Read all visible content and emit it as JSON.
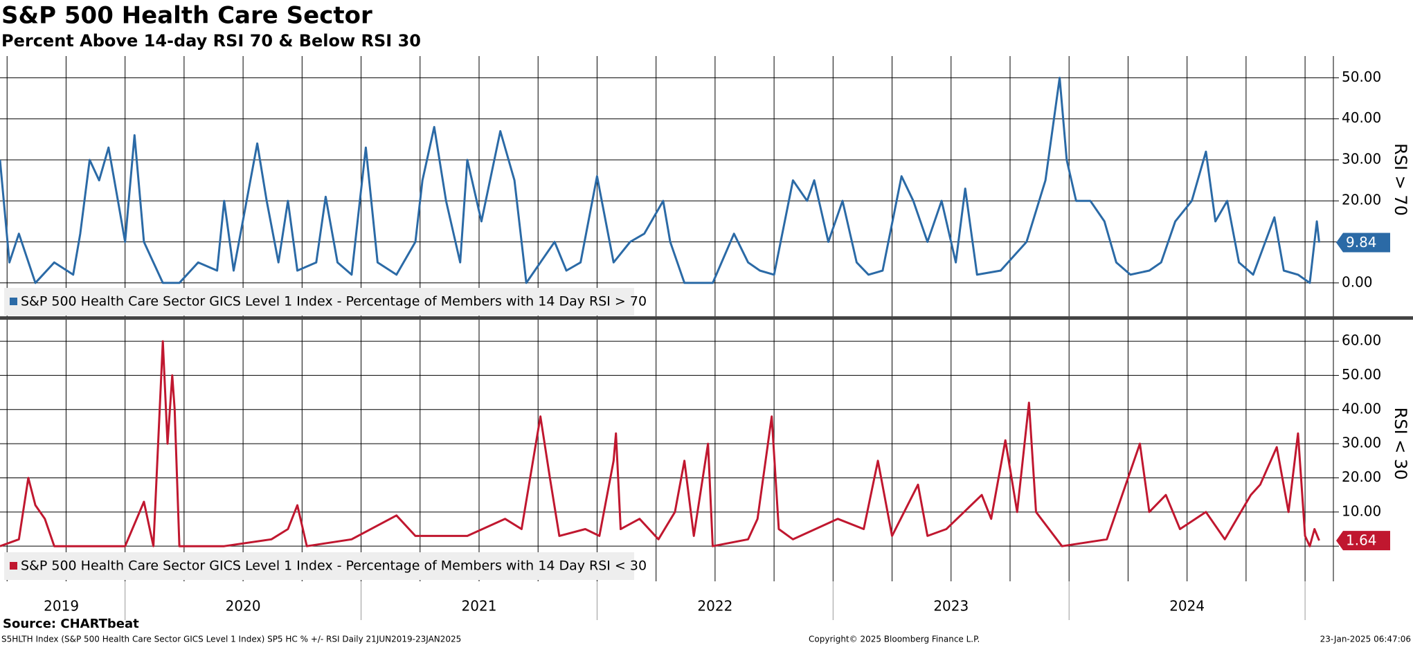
{
  "title": "S&P 500 Health Care Sector",
  "subtitle": "Percent Above 14-day RSI 70 & Below RSI 30",
  "notes": {
    "source": "Source: CHARTbeat",
    "footer": "S5HLTH Index (S&P 500 Health Care Sector GICS Level 1 Index) SP5 HC % +/- RSI  Daily 21JUN2019-23JAN2025",
    "copyright": "Copyright© 2025 Bloomberg Finance L.P.",
    "timestamp": "23-Jan-2025 06:47:06"
  },
  "chart_data": [
    {
      "type": "line",
      "y_label": "RSI > 70",
      "ylim": [
        -8.3,
        55.3
      ],
      "yticks": [
        {
          "value": 0,
          "label": "0.00"
        },
        {
          "value": 10,
          "label": "10.00"
        },
        {
          "value": 20,
          "label": "20.00"
        },
        {
          "value": 30,
          "label": "30.00"
        },
        {
          "value": 40,
          "label": "40.00"
        },
        {
          "value": 50,
          "label": "50.00"
        }
      ],
      "xlim": [
        2019.47,
        2025.12
      ],
      "grid": true,
      "series": [
        {
          "name": "S&P 500 Health Care Sector GICS Level 1 Index - Percentage of Members with 14 Day RSI > 70",
          "color": "#2b6aa6",
          "x": [
            2019.47,
            2019.51,
            2019.55,
            2019.62,
            2019.7,
            2019.78,
            2019.81,
            2019.85,
            2019.89,
            2019.93,
            2019.97,
            2020.0,
            2020.04,
            2020.08,
            2020.12,
            2020.16,
            2020.23,
            2020.31,
            2020.39,
            2020.42,
            2020.46,
            2020.56,
            2020.6,
            2020.65,
            2020.69,
            2020.73,
            2020.81,
            2020.85,
            2020.9,
            2020.96,
            2021.02,
            2021.07,
            2021.15,
            2021.23,
            2021.26,
            2021.31,
            2021.36,
            2021.42,
            2021.45,
            2021.51,
            2021.59,
            2021.65,
            2021.68,
            2021.7,
            2021.76,
            2021.82,
            2021.87,
            2021.93,
            2022.0,
            2022.07,
            2022.14,
            2022.2,
            2022.28,
            2022.31,
            2022.37,
            2022.43,
            2022.49,
            2022.58,
            2022.64,
            2022.69,
            2022.75,
            2022.83,
            2022.89,
            2022.92,
            2022.98,
            2023.04,
            2023.1,
            2023.15,
            2023.21,
            2023.29,
            2023.34,
            2023.4,
            2023.46,
            2023.52,
            2023.56,
            2023.61,
            2023.71,
            2023.82,
            2023.9,
            2023.96,
            2023.99,
            2024.03,
            2024.09,
            2024.15,
            2024.2,
            2024.26,
            2024.34,
            2024.39,
            2024.45,
            2024.52,
            2024.58,
            2024.62,
            2024.67,
            2024.72,
            2024.78,
            2024.87,
            2024.91,
            2024.97,
            2025.02,
            2025.05,
            2025.06
          ],
          "values": [
            30,
            5,
            12,
            0,
            5,
            2,
            12,
            30,
            25,
            33,
            20,
            10,
            36,
            10,
            5,
            0,
            0,
            5,
            3,
            20,
            3,
            34,
            20,
            5,
            20,
            3,
            5,
            21,
            5,
            2,
            33,
            5,
            2,
            10,
            25,
            38,
            20,
            5,
            30,
            15,
            37,
            25,
            10,
            0,
            5,
            10,
            3,
            5,
            26,
            5,
            10,
            12,
            20,
            10,
            0,
            0,
            0,
            12,
            5,
            3,
            2,
            25,
            20,
            25,
            10,
            20,
            5,
            2,
            3,
            26,
            20,
            10,
            20,
            5,
            23,
            2,
            3,
            10,
            25,
            50,
            30,
            20,
            20,
            15,
            5,
            2,
            3,
            5,
            15,
            20,
            32,
            15,
            20,
            5,
            2,
            16,
            3,
            2,
            0,
            15,
            9.84
          ]
        }
      ]
    },
    {
      "type": "line",
      "y_label": "RSI < 30",
      "ylim": [
        -10.3,
        66.3
      ],
      "yticks": [
        {
          "value": 0,
          "label": "0.00"
        },
        {
          "value": 10,
          "label": "10.00"
        },
        {
          "value": 20,
          "label": "20.00"
        },
        {
          "value": 30,
          "label": "30.00"
        },
        {
          "value": 40,
          "label": "40.00"
        },
        {
          "value": 50,
          "label": "50.00"
        },
        {
          "value": 60,
          "label": "60.00"
        }
      ],
      "xlim": [
        2019.47,
        2025.12
      ],
      "grid": true,
      "xgrid": [
        2019.5,
        2019.75,
        2020,
        2020.25,
        2020.5,
        2020.75,
        2021,
        2021.25,
        2021.5,
        2021.75,
        2022,
        2022.25,
        2022.5,
        2022.75,
        2023,
        2023.25,
        2023.5,
        2023.75,
        2024,
        2024.25,
        2024.5,
        2024.75,
        2025
      ],
      "xticks": [
        {
          "value": 2019.73,
          "label": "2019"
        },
        {
          "value": 2020.5,
          "label": "2020"
        },
        {
          "value": 2021.5,
          "label": "2021"
        },
        {
          "value": 2022.5,
          "label": "2022"
        },
        {
          "value": 2023.5,
          "label": "2023"
        },
        {
          "value": 2024.5,
          "label": "2024"
        }
      ],
      "series": [
        {
          "name": "S&P 500 Health Care Sector GICS Level 1 Index - Percentage of Members with 14 Day RSI < 30",
          "color": "#c0172f",
          "x": [
            2019.47,
            2019.55,
            2019.59,
            2019.62,
            2019.66,
            2019.7,
            2019.85,
            2020.0,
            2020.08,
            2020.12,
            2020.16,
            2020.18,
            2020.2,
            2020.21,
            2020.23,
            2020.42,
            2020.62,
            2020.69,
            2020.73,
            2020.77,
            2020.96,
            2021.15,
            2021.23,
            2021.45,
            2021.61,
            2021.68,
            2021.76,
            2021.8,
            2021.84,
            2021.95,
            2022.01,
            2022.07,
            2022.08,
            2022.1,
            2022.18,
            2022.26,
            2022.33,
            2022.37,
            2022.41,
            2022.47,
            2022.49,
            2022.64,
            2022.68,
            2022.74,
            2022.77,
            2022.83,
            2023.02,
            2023.13,
            2023.19,
            2023.25,
            2023.36,
            2023.4,
            2023.48,
            2023.63,
            2023.67,
            2023.73,
            2023.78,
            2023.83,
            2023.86,
            2023.97,
            2024.16,
            2024.3,
            2024.34,
            2024.41,
            2024.47,
            2024.58,
            2024.66,
            2024.77,
            2024.81,
            2024.88,
            2024.93,
            2024.97,
            2025.0,
            2025.02,
            2025.04,
            2025.06
          ],
          "values": [
            0,
            2,
            20,
            12,
            8,
            0,
            0,
            0,
            13,
            0,
            60,
            30,
            50,
            40,
            0,
            0,
            2,
            5,
            12,
            0,
            2,
            9,
            3,
            3,
            8,
            5,
            38,
            20,
            3,
            5,
            3,
            25,
            33,
            5,
            8,
            2,
            10,
            25,
            3,
            30,
            0,
            2,
            8,
            38,
            5,
            2,
            8,
            5,
            25,
            3,
            18,
            3,
            5,
            15,
            8,
            31,
            10,
            42,
            10,
            0,
            2,
            30,
            10,
            15,
            5,
            10,
            2,
            15,
            18,
            29,
            10,
            33,
            3,
            0,
            5,
            1.64
          ]
        }
      ]
    }
  ]
}
